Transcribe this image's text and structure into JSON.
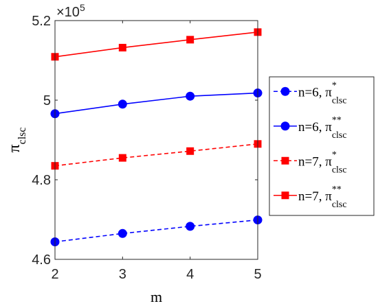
{
  "chart_data": {
    "type": "line",
    "title": "",
    "xlabel": "m",
    "ylabel_main": "π",
    "ylabel_sub": "clsc",
    "x": [
      2,
      3,
      4,
      5
    ],
    "xlim": [
      2,
      5
    ],
    "ylim": [
      4.6,
      5.2
    ],
    "y_multiplier": "×10",
    "y_multiplier_exp": "5",
    "xticks": [
      "2",
      "3",
      "4",
      "5"
    ],
    "yticks": [
      "4.6",
      "4.8",
      "5",
      "5.2"
    ],
    "ytick_values": [
      4.6,
      4.8,
      5.0,
      5.2
    ],
    "grid": false,
    "legend_placement": "outside-right",
    "series": [
      {
        "key": "n6-star",
        "legend_main": "n=6, π",
        "legend_sup": "*",
        "legend_sub": "clsc",
        "values": [
          4.644,
          4.665,
          4.683,
          4.699
        ],
        "color": "#0000ff",
        "line": "dashed",
        "marker": "circle"
      },
      {
        "key": "n6-doublestar",
        "legend_main": "n=6, π",
        "legend_sup": "**",
        "legend_sub": "clsc",
        "values": [
          4.966,
          4.99,
          5.01,
          5.018
        ],
        "color": "#0000ff",
        "line": "solid",
        "marker": "circle"
      },
      {
        "key": "n7-star",
        "legend_main": "n=7, π",
        "legend_sup": "*",
        "legend_sub": "clsc",
        "values": [
          4.835,
          4.855,
          4.872,
          4.89
        ],
        "color": "#ff0000",
        "line": "dashed",
        "marker": "square"
      },
      {
        "key": "n7-doublestar",
        "legend_main": "n=7, π",
        "legend_sup": "**",
        "legend_sub": "clsc",
        "values": [
          5.109,
          5.132,
          5.152,
          5.171
        ],
        "color": "#ff0000",
        "line": "solid",
        "marker": "square"
      }
    ]
  }
}
